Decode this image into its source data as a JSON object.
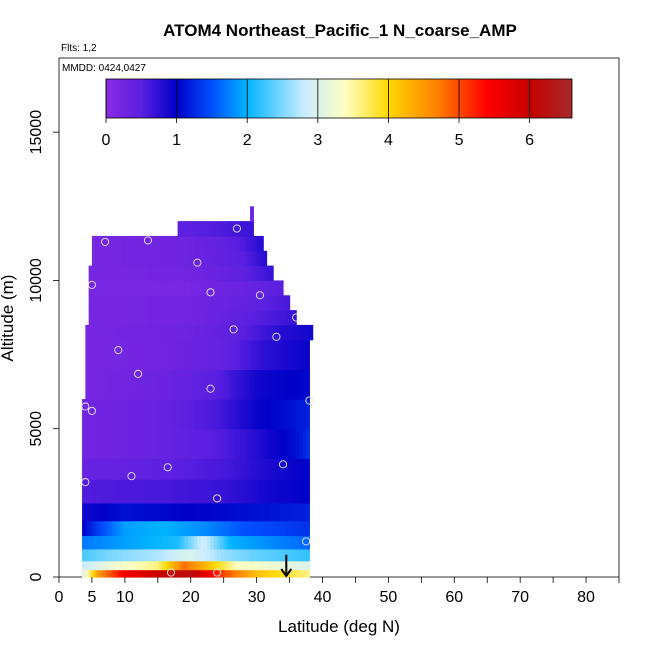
{
  "chart_data": {
    "type": "heatmap",
    "title": "ATOM4 Northeast_Pacific_1 N_coarse_AMP",
    "flights_label": "Flts: 1,2",
    "dates_label": "MMDD: 0424,0427",
    "xlabel": "Latitude (deg N)",
    "ylabel": "Altitude (m)",
    "xlim": [
      0,
      85
    ],
    "ylim": [
      0,
      17500
    ],
    "x_ticks_major": [
      0,
      10,
      20,
      30,
      40,
      50,
      60,
      70,
      80
    ],
    "x_ticks_minor": [
      5,
      15,
      25,
      35,
      45,
      55,
      65,
      75,
      85
    ],
    "x_tick_labels": [
      "0",
      "5",
      "10",
      "20",
      "30",
      "40",
      "50",
      "60",
      "70",
      "80"
    ],
    "x_tick_label_values": [
      0,
      5,
      10,
      20,
      30,
      40,
      50,
      60,
      70,
      80
    ],
    "y_ticks": [
      0,
      5000,
      10000,
      15000
    ],
    "y_tick_labels": [
      "0",
      "5000",
      "10000",
      "15000"
    ],
    "colorbar": {
      "min": 0,
      "max": 6.6,
      "ticks": [
        0,
        1,
        2,
        3,
        4,
        5,
        6
      ],
      "tick_labels": [
        "0",
        "1",
        "2",
        "3",
        "4",
        "5",
        "6"
      ],
      "colors": [
        "#8a2be2",
        "#5a1fe0",
        "#0000c8",
        "#0050ff",
        "#00b4ff",
        "#c8ecff",
        "#ffffc0",
        "#ffd700",
        "#ff7f00",
        "#ff0000",
        "#c80000",
        "#a52a2a"
      ],
      "color_values": [
        0,
        0.5,
        1,
        1.5,
        2,
        2.8,
        3.4,
        4,
        4.7,
        5.4,
        6.0,
        6.6
      ]
    },
    "field": {
      "rows": [
        {
          "alt0": 0,
          "alt1": 250,
          "lat0": 3.5,
          "lat1": 38,
          "profile": [
            [
              3.5,
              3.0
            ],
            [
              6,
              4.5
            ],
            [
              10,
              5.5
            ],
            [
              15,
              6.0
            ],
            [
              20,
              6.2
            ],
            [
              25,
              5.0
            ],
            [
              30,
              4.2
            ],
            [
              35,
              3.8
            ],
            [
              38,
              3.6
            ]
          ]
        },
        {
          "alt0": 250,
          "alt1": 550,
          "lat0": 3.5,
          "lat1": 38,
          "profile": [
            [
              3.5,
              2.8
            ],
            [
              8,
              3.2
            ],
            [
              15,
              3.6
            ],
            [
              19,
              4.8
            ],
            [
              22,
              4.3
            ],
            [
              27,
              3.4
            ],
            [
              33,
              3.2
            ],
            [
              38,
              3.0
            ]
          ]
        },
        {
          "alt0": 550,
          "alt1": 950,
          "lat0": 3.5,
          "lat1": 38,
          "profile": [
            [
              3.5,
              2.3
            ],
            [
              8,
              2.5
            ],
            [
              15,
              2.7
            ],
            [
              20,
              3.0
            ],
            [
              25,
              2.6
            ],
            [
              30,
              2.4
            ],
            [
              38,
              2.2
            ]
          ]
        },
        {
          "alt0": 950,
          "alt1": 1400,
          "lat0": 3.5,
          "lat1": 38,
          "profile": [
            [
              3.5,
              1.7
            ],
            [
              10,
              1.9
            ],
            [
              18,
              2.1
            ],
            [
              22,
              2.9
            ],
            [
              26,
              2.0
            ],
            [
              32,
              1.8
            ],
            [
              38,
              1.6
            ]
          ]
        },
        {
          "alt0": 1400,
          "alt1": 1900,
          "lat0": 3.5,
          "lat1": 38,
          "profile": [
            [
              3.5,
              1.0
            ],
            [
              6,
              1.4
            ],
            [
              10,
              1.9
            ],
            [
              16,
              2.0
            ],
            [
              22,
              1.8
            ],
            [
              28,
              1.5
            ],
            [
              34,
              1.4
            ],
            [
              38,
              1.3
            ]
          ]
        },
        {
          "alt0": 1900,
          "alt1": 2500,
          "lat0": 3.5,
          "lat1": 38,
          "profile": [
            [
              3.5,
              0.9
            ],
            [
              10,
              1.1
            ],
            [
              20,
              1.0
            ],
            [
              30,
              1.1
            ],
            [
              38,
              1.2
            ]
          ]
        },
        {
          "alt0": 2500,
          "alt1": 3300,
          "lat0": 3.5,
          "lat1": 38,
          "profile": [
            [
              3.5,
              0.55
            ],
            [
              15,
              0.6
            ],
            [
              25,
              0.7
            ],
            [
              32,
              0.9
            ],
            [
              38,
              1.0
            ]
          ]
        },
        {
          "alt0": 3300,
          "alt1": 4000,
          "lat0": 3.5,
          "lat1": 38,
          "profile": [
            [
              3.5,
              0.35
            ],
            [
              15,
              0.45
            ],
            [
              25,
              0.6
            ],
            [
              32,
              0.85
            ],
            [
              38,
              1.0
            ]
          ]
        },
        {
          "alt0": 4000,
          "alt1": 5000,
          "lat0": 3.5,
          "lat1": 38,
          "profile": [
            [
              3.5,
              0.25
            ],
            [
              15,
              0.35
            ],
            [
              25,
              0.55
            ],
            [
              31,
              0.85
            ],
            [
              36,
              1.1
            ],
            [
              38,
              1.3
            ]
          ]
        },
        {
          "alt0": 5000,
          "alt1": 6000,
          "lat0": 3.5,
          "lat1": 38,
          "profile": [
            [
              3.5,
              0.25
            ],
            [
              15,
              0.35
            ],
            [
              24,
              0.6
            ],
            [
              30,
              0.95
            ],
            [
              35,
              1.1
            ],
            [
              38,
              1.2
            ]
          ]
        },
        {
          "alt0": 6000,
          "alt1": 7000,
          "lat0": 4,
          "lat1": 38,
          "profile": [
            [
              4,
              0.2
            ],
            [
              15,
              0.3
            ],
            [
              24,
              0.5
            ],
            [
              30,
              0.9
            ],
            [
              35,
              1.0
            ],
            [
              38,
              1.05
            ]
          ]
        },
        {
          "alt0": 7000,
          "alt1": 8000,
          "lat0": 4,
          "lat1": 38,
          "profile": [
            [
              4,
              0.2
            ],
            [
              15,
              0.25
            ],
            [
              25,
              0.4
            ],
            [
              31,
              0.75
            ],
            [
              36,
              0.9
            ],
            [
              38,
              0.95
            ]
          ]
        },
        {
          "alt0": 8000,
          "alt1": 8500,
          "lat0": 4,
          "lat1": 38.5,
          "profile": [
            [
              4,
              0.2
            ],
            [
              20,
              0.3
            ],
            [
              28,
              0.5
            ],
            [
              34,
              0.8
            ],
            [
              38.5,
              0.9
            ]
          ]
        },
        {
          "alt0": 8500,
          "alt1": 9000,
          "lat0": 4.5,
          "lat1": 36,
          "profile": [
            [
              4.5,
              0.2
            ],
            [
              20,
              0.25
            ],
            [
              28,
              0.45
            ],
            [
              36,
              0.7
            ]
          ]
        },
        {
          "alt0": 9000,
          "alt1": 9500,
          "lat0": 4.5,
          "lat1": 35,
          "profile": [
            [
              4.5,
              0.2
            ],
            [
              20,
              0.25
            ],
            [
              28,
              0.4
            ],
            [
              35,
              0.6
            ]
          ]
        },
        {
          "alt0": 9500,
          "alt1": 10000,
          "lat0": 4.5,
          "lat1": 34,
          "profile": [
            [
              4.5,
              0.2
            ],
            [
              20,
              0.2
            ],
            [
              28,
              0.35
            ],
            [
              34,
              0.5
            ]
          ]
        },
        {
          "alt0": 10000,
          "alt1": 10500,
          "lat0": 4.5,
          "lat1": 32.5,
          "profile": [
            [
              4.5,
              0.2
            ],
            [
              20,
              0.25
            ],
            [
              28,
              0.45
            ],
            [
              32.5,
              0.7
            ]
          ]
        },
        {
          "alt0": 10500,
          "alt1": 11000,
          "lat0": 5,
          "lat1": 31.5,
          "profile": [
            [
              5,
              0.2
            ],
            [
              20,
              0.3
            ],
            [
              28,
              0.5
            ],
            [
              31.5,
              0.8
            ]
          ]
        },
        {
          "alt0": 11000,
          "alt1": 11500,
          "lat0": 5,
          "lat1": 31,
          "profile": [
            [
              5,
              0.2
            ],
            [
              20,
              0.3
            ],
            [
              27,
              0.5
            ],
            [
              31,
              0.8
            ]
          ]
        },
        {
          "alt0": 11500,
          "alt1": 12000,
          "lat0": 18,
          "lat1": 29.5,
          "profile": [
            [
              18,
              0.45
            ],
            [
              24,
              0.55
            ],
            [
              29.5,
              0.7
            ]
          ]
        },
        {
          "alt0": 12000,
          "alt1": 12500,
          "lat0": 29,
          "lat1": 29.5,
          "profile": [
            [
              29,
              0.3
            ],
            [
              29.5,
              0.3
            ]
          ]
        }
      ]
    },
    "markers": [
      {
        "lat": 4,
        "alt": 150
      },
      {
        "lat": 17,
        "alt": 150
      },
      {
        "lat": 24,
        "alt": 150
      },
      {
        "lat": 37.5,
        "alt": 1200
      },
      {
        "lat": 24,
        "alt": 2650
      },
      {
        "lat": 11,
        "alt": 3400
      },
      {
        "lat": 4,
        "alt": 3200
      },
      {
        "lat": 16.5,
        "alt": 3700
      },
      {
        "lat": 34,
        "alt": 3800
      },
      {
        "lat": 4,
        "alt": 5750
      },
      {
        "lat": 5,
        "alt": 5600
      },
      {
        "lat": 38,
        "alt": 5950
      },
      {
        "lat": 23,
        "alt": 6350
      },
      {
        "lat": 12,
        "alt": 6850
      },
      {
        "lat": 9,
        "alt": 7650
      },
      {
        "lat": 33,
        "alt": 8100
      },
      {
        "lat": 26.5,
        "alt": 8350
      },
      {
        "lat": 36,
        "alt": 8750
      },
      {
        "lat": 23,
        "alt": 9600
      },
      {
        "lat": 30.5,
        "alt": 9500
      },
      {
        "lat": 5,
        "alt": 9850
      },
      {
        "lat": 21,
        "alt": 10600
      },
      {
        "lat": 7,
        "alt": 11300
      },
      {
        "lat": 13.5,
        "alt": 11350
      },
      {
        "lat": 27,
        "alt": 11750
      }
    ],
    "arrow": {
      "lat": 34.5,
      "alt_top": 750,
      "alt_bottom": 0
    }
  }
}
